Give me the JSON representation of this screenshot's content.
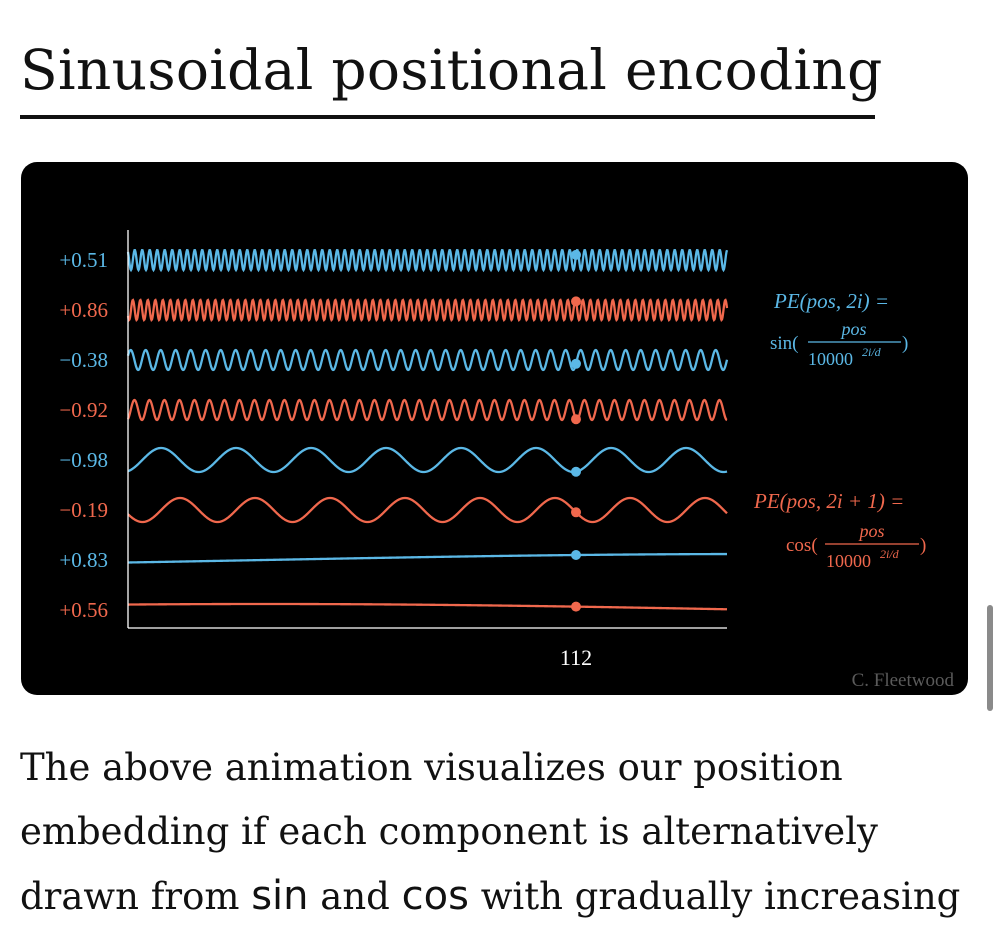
{
  "page": {
    "title": "Sinusoidal positional encoding",
    "paragraph": {
      "line1": "The above animation visualizes our position",
      "line2": "embedding if each component is alternatively",
      "line3_pre": "drawn from ",
      "line3_sin": "sin",
      "line3_mid": " and ",
      "line3_cos": "cos",
      "line3_post": " with gradually increasing"
    }
  },
  "colors": {
    "sin": "#5bb8e6",
    "cos": "#f0684d",
    "axis": "#ffffff",
    "background": "#000000"
  },
  "chart_data": {
    "type": "line",
    "title": "",
    "xlabel": "",
    "ylabel": "",
    "x_tick_labels": [
      "112"
    ],
    "marker_position": 112,
    "grid": false,
    "series": [
      {
        "function": "sin",
        "value_label": "+0.51",
        "relative_frequency": 80,
        "color": "#5bb8e6"
      },
      {
        "function": "cos",
        "value_label": "+0.86",
        "relative_frequency": 80,
        "color": "#f0684d"
      },
      {
        "function": "sin",
        "value_label": "−0.38",
        "relative_frequency": 40,
        "color": "#5bb8e6"
      },
      {
        "function": "cos",
        "value_label": "−0.92",
        "relative_frequency": 40,
        "color": "#f0684d"
      },
      {
        "function": "sin",
        "value_label": "−0.98",
        "relative_frequency": 8,
        "color": "#5bb8e6"
      },
      {
        "function": "cos",
        "value_label": "−0.19",
        "relative_frequency": 8,
        "color": "#f0684d"
      },
      {
        "function": "sin",
        "value_label": "+0.83",
        "relative_frequency": 0.3,
        "color": "#5bb8e6"
      },
      {
        "function": "cos",
        "value_label": "+0.56",
        "relative_frequency": 0.3,
        "color": "#f0684d"
      }
    ],
    "annotations": {
      "sin_formula": {
        "lhs": "PE(pos, 2i) =",
        "func": "sin(",
        "numerator": "pos",
        "denominator": "10000",
        "exponent": "2i/d",
        "close": ")"
      },
      "cos_formula": {
        "lhs": "PE(pos, 2i + 1) =",
        "func": "cos(",
        "numerator": "pos",
        "denominator": "10000",
        "exponent": "2i/d",
        "close": ")"
      },
      "credit": "C. Fleetwood"
    }
  }
}
